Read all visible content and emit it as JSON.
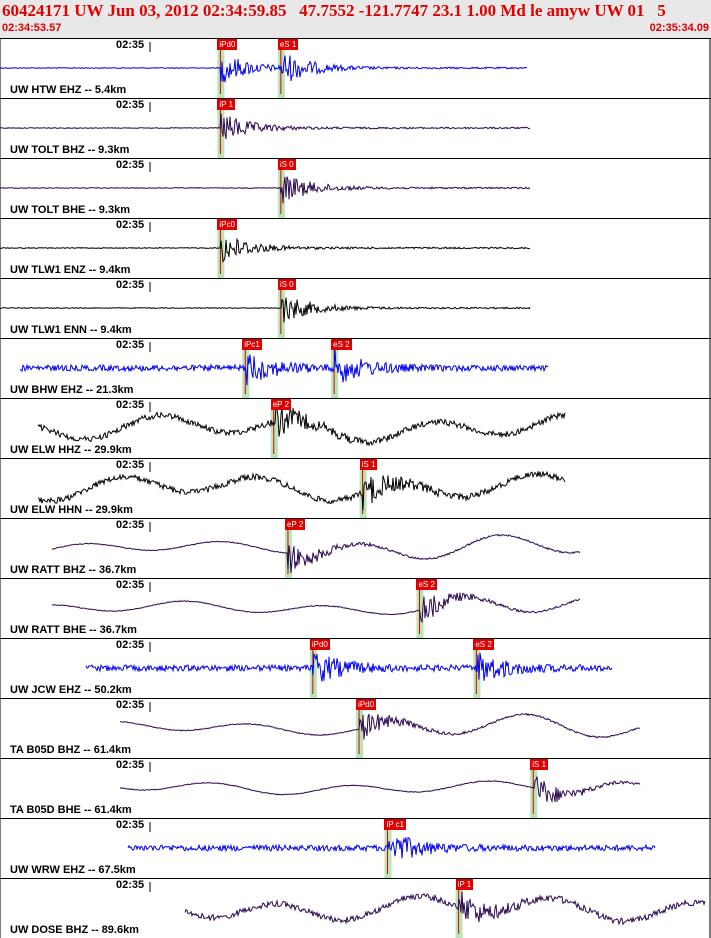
{
  "header": {
    "title": "60424171 UW Jun 03, 2012 02:34:59.85   47.7552 -121.7747 23.1 1.00 Md le amyw UW 01   5",
    "start_time": "02:34:53.57",
    "end_time": "02:35:34.09"
  },
  "colors": {
    "title": "#e00000",
    "pick": "#e00000",
    "phase_bar": "#b8e4b8",
    "blue": "#0000ee",
    "purple": "#2a0850",
    "black": "#000000"
  },
  "traces": [
    {
      "label": "UW HTW EHZ -- 5.4km",
      "time": "02:35",
      "color": "blue",
      "picks": [
        {
          "text": "iPd0",
          "x": 0.31
        },
        {
          "text": "eS 1",
          "x": 0.395
        }
      ],
      "extra_pick_text": ""
    },
    {
      "label": "UW TOLT BHZ -- 9.3km",
      "time": "02:35",
      "color": "purple",
      "picks": [
        {
          "text": "iP 1",
          "x": 0.31
        }
      ]
    },
    {
      "label": "UW TOLT BHE -- 9.3km",
      "time": "02:35",
      "color": "purple",
      "picks": [
        {
          "text": "iS 0",
          "x": 0.395
        }
      ]
    },
    {
      "label": "UW TLW1 ENZ -- 9.4km",
      "time": "02:35",
      "color": "black",
      "picks": [
        {
          "text": "iPc0",
          "x": 0.31
        }
      ]
    },
    {
      "label": "UW TLW1 ENN -- 9.4km",
      "time": "02:35",
      "color": "black",
      "picks": [
        {
          "text": "iS 0",
          "x": 0.395
        }
      ]
    },
    {
      "label": "UW BHW EHZ -- 21.3km",
      "time": "02:35",
      "color": "blue",
      "picks": [
        {
          "text": "iPc1",
          "x": 0.345
        },
        {
          "text": "eS 2",
          "x": 0.47
        }
      ]
    },
    {
      "label": "UW ELW HHZ -- 29.9km",
      "time": "02:35",
      "color": "black",
      "picks": [
        {
          "text": "eP 2",
          "x": 0.385
        }
      ]
    },
    {
      "label": "UW ELW HHN -- 29.9km",
      "time": "02:35",
      "color": "black",
      "picks": [
        {
          "text": "iS 1",
          "x": 0.51
        }
      ]
    },
    {
      "label": "UW RATT BHZ -- 36.7km",
      "time": "02:35",
      "color": "purple",
      "picks": [
        {
          "text": "eP 2",
          "x": 0.405
        }
      ]
    },
    {
      "label": "UW RATT BHE -- 36.7km",
      "time": "02:35",
      "color": "purple",
      "picks": [
        {
          "text": "eS 2",
          "x": 0.59
        }
      ]
    },
    {
      "label": "UW JCW EHZ -- 50.2km",
      "time": "02:35",
      "color": "blue",
      "picks": [
        {
          "text": "iPd0",
          "x": 0.44
        },
        {
          "text": "eS 2",
          "x": 0.67
        }
      ]
    },
    {
      "label": "TA B05D BHZ -- 61.4km",
      "time": "02:35",
      "color": "purple",
      "picks": [
        {
          "text": "iPd0",
          "x": 0.505
        }
      ]
    },
    {
      "label": "TA B05D BHE -- 61.4km",
      "time": "02:35",
      "color": "purple",
      "picks": [
        {
          "text": "iS 1",
          "x": 0.75
        }
      ]
    },
    {
      "label": "UW WRW EHZ -- 67.5km",
      "time": "02:35",
      "color": "blue",
      "picks": [
        {
          "text": "iP c1",
          "x": 0.545
        }
      ]
    },
    {
      "label": "UW DOSE BHZ -- 89.6km",
      "time": "02:35",
      "color": "purple",
      "picks": [
        {
          "text": "iP 1",
          "x": 0.645
        }
      ]
    }
  ]
}
